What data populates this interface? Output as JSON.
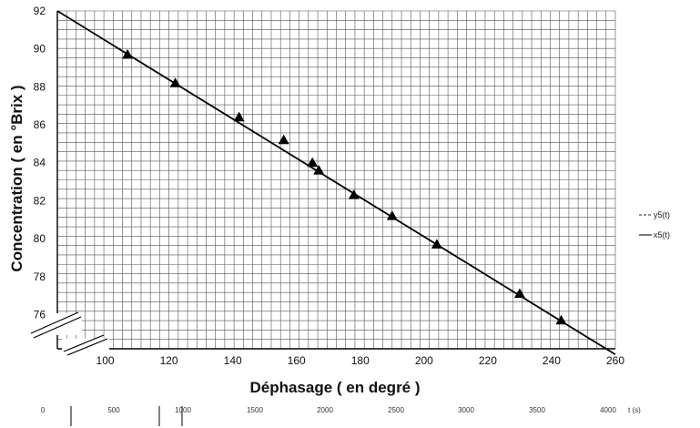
{
  "chart_data": {
    "type": "scatter",
    "xlabel": "Déphasage ( en degré )",
    "ylabel": "Concentration ( en °Brix )",
    "xlim": [
      85,
      260
    ],
    "ylim": [
      74.2,
      92
    ],
    "x_ticks": [
      100,
      120,
      140,
      160,
      180,
      200,
      220,
      240,
      260
    ],
    "y_ticks": [
      76,
      78,
      80,
      82,
      84,
      86,
      88,
      90,
      92
    ],
    "grid": true,
    "axis_breaks": [
      "x",
      "y"
    ],
    "series": [
      {
        "marker": "triangle",
        "color": "#000000",
        "points": [
          {
            "x": 107,
            "y": 89.7
          },
          {
            "x": 122,
            "y": 88.2
          },
          {
            "x": 142,
            "y": 86.4
          },
          {
            "x": 156,
            "y": 85.2
          },
          {
            "x": 165,
            "y": 84.0
          },
          {
            "x": 167,
            "y": 83.6
          },
          {
            "x": 178,
            "y": 82.3
          },
          {
            "x": 190,
            "y": 81.2
          },
          {
            "x": 204,
            "y": 79.7
          },
          {
            "x": 230,
            "y": 77.1
          },
          {
            "x": 243,
            "y": 75.7
          }
        ]
      }
    ],
    "fit_line": {
      "x": [
        85,
        260
      ],
      "y": [
        92.0,
        73.9
      ],
      "color": "#000000"
    },
    "legend": {
      "placement": "right",
      "entries": [
        {
          "label": "y5(t)",
          "style": "dashed"
        },
        {
          "label": "x5(t)",
          "style": "solid"
        }
      ]
    },
    "secondary_axis": {
      "ticks": [
        "0",
        "500",
        "1000",
        "1500",
        "2000",
        "2500",
        "3000",
        "3500",
        "4000"
      ],
      "label": "t (s)"
    }
  }
}
